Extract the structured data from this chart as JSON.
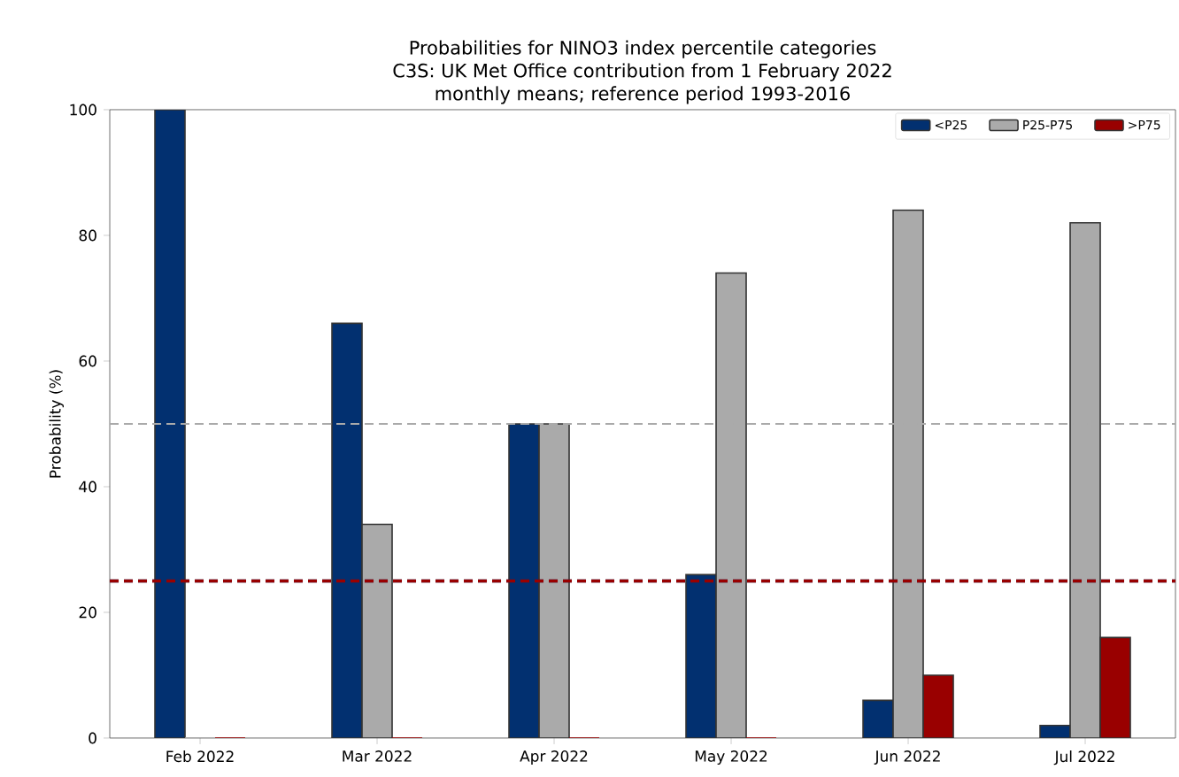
{
  "chart_data": {
    "type": "bar",
    "title": "Probabilities for NINO3 index percentile categories",
    "subtitle": "C3S: UK Met Office contribution from 1 February 2022\nmonthly means; reference period 1993-2016",
    "ylabel": "Probability (%)",
    "categories": [
      "Feb 2022",
      "Mar 2022",
      "Apr 2022",
      "May 2022",
      "Jun 2022",
      "Jul 2022"
    ],
    "series": [
      {
        "name": "<P25",
        "color": "#023070",
        "values": [
          100,
          66,
          50,
          26,
          6,
          2
        ]
      },
      {
        "name": "P25-P75",
        "color": "#aaaaaa",
        "values": [
          0,
          34,
          50,
          74,
          84,
          82
        ]
      },
      {
        "name": ">P75",
        "color": "#990000",
        "values": [
          0,
          0,
          0,
          0,
          10,
          16
        ]
      }
    ],
    "ylim": [
      0,
      100
    ],
    "yticks": [
      0,
      20,
      40,
      60,
      80,
      100
    ],
    "ref_lines": [
      {
        "axis": "y",
        "value": 50,
        "color": "#aaaaaa",
        "line_style": "dashed"
      },
      {
        "axis": "y",
        "value": 25,
        "color": "#023070",
        "line_style": "dashed"
      },
      {
        "axis": "y",
        "value": 25,
        "color": "#990000",
        "line_style": "dashed"
      }
    ],
    "legend": "top right",
    "grid": false
  }
}
